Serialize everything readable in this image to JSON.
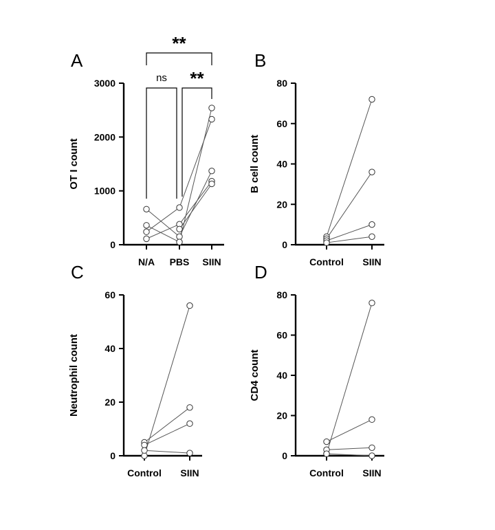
{
  "chart_data": [
    {
      "panel": "A",
      "type": "scatter",
      "ylabel": "OT I count",
      "categories": [
        "N/A",
        "PBS",
        "SIIN"
      ],
      "ylim": [
        0,
        3000
      ],
      "yticks": [
        0,
        1000,
        2000,
        3000
      ],
      "paired_values": [
        [
          660,
          150,
          1370
        ],
        [
          360,
          50,
          2540
        ],
        [
          240,
          690,
          2330
        ],
        [
          110,
          380,
          1180
        ],
        [
          null,
          290,
          1130
        ]
      ],
      "significance": [
        {
          "from": "N/A",
          "to": "PBS",
          "label": "ns"
        },
        {
          "from": "PBS",
          "to": "SIIN",
          "label": "**"
        },
        {
          "from": "N/A",
          "to": "SIIN",
          "label": "**"
        }
      ]
    },
    {
      "panel": "B",
      "type": "scatter",
      "ylabel": "B cell count",
      "categories": [
        "Control",
        "SIIN"
      ],
      "ylim": [
        0,
        80
      ],
      "yticks": [
        0,
        20,
        40,
        60,
        80
      ],
      "paired_values": [
        [
          4,
          72
        ],
        [
          3,
          36
        ],
        [
          2,
          10
        ],
        [
          1,
          4
        ]
      ]
    },
    {
      "panel": "C",
      "type": "scatter",
      "ylabel": "Neutrophil count",
      "categories": [
        "Control",
        "SIIN"
      ],
      "ylim": [
        0,
        60
      ],
      "yticks": [
        0,
        20,
        40,
        60
      ],
      "paired_values": [
        [
          0,
          56
        ],
        [
          5,
          18
        ],
        [
          4,
          12
        ],
        [
          2,
          1
        ]
      ]
    },
    {
      "panel": "D",
      "type": "scatter",
      "ylabel": "CD4 count",
      "categories": [
        "Control",
        "SIIN"
      ],
      "ylim": [
        0,
        80
      ],
      "yticks": [
        0,
        20,
        40,
        60,
        80
      ],
      "paired_values": [
        [
          1,
          76
        ],
        [
          7,
          18
        ],
        [
          3,
          4
        ],
        [
          1,
          0
        ]
      ]
    }
  ]
}
